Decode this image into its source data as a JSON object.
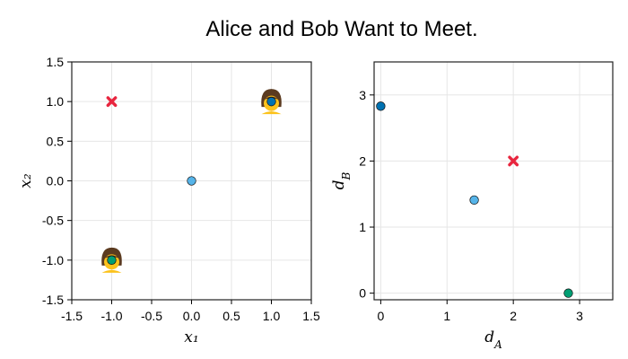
{
  "title": "Alice and Bob Want to Meet.",
  "colors": {
    "grid": "#e6e6e6",
    "frame": "#222222",
    "red_cross": "#e8263f",
    "blue_light": "#56b4e9",
    "blue_dark": "#0072b2",
    "green": "#009e73"
  },
  "chart_data": [
    {
      "type": "scatter",
      "title": "",
      "xlabel": "x₁",
      "ylabel": "x₂",
      "xlim": [
        -1.5,
        1.5
      ],
      "ylim": [
        -1.5,
        1.5
      ],
      "xticks": [
        -1.5,
        -1.0,
        -0.5,
        0.0,
        0.5,
        1.0,
        1.5
      ],
      "xtick_labels": [
        "-1.5",
        "-1.0",
        "-0.5",
        "0.0",
        "0.5",
        "1.0",
        "1.5"
      ],
      "yticks": [
        -1.5,
        -1.0,
        -0.5,
        0.0,
        0.5,
        1.0,
        1.5
      ],
      "ytick_labels": [
        "-1.5",
        "-1.0",
        "-0.5",
        "0.0",
        "0.5",
        "1.0",
        "1.5"
      ],
      "grid": true,
      "points": [
        {
          "x": -1.0,
          "y": 1.0,
          "marker": "x-cross",
          "color": "#e8263f"
        },
        {
          "x": 0.0,
          "y": 0.0,
          "marker": "circle",
          "color": "#56b4e9"
        },
        {
          "x": 1.0,
          "y": 1.0,
          "marker": "person-icon",
          "color": "#0072b2"
        },
        {
          "x": -1.0,
          "y": -1.0,
          "marker": "person-icon",
          "color": "#009e73"
        }
      ]
    },
    {
      "type": "scatter",
      "title": "",
      "xlabel": "d_A",
      "ylabel": "d_B",
      "xlim": [
        -0.1,
        3.5
      ],
      "ylim": [
        -0.1,
        3.5
      ],
      "xticks": [
        0,
        1,
        2,
        3
      ],
      "xtick_labels": [
        "0",
        "1",
        "2",
        "3"
      ],
      "yticks": [
        0,
        1,
        2,
        3
      ],
      "ytick_labels": [
        "0",
        "1",
        "2",
        "3"
      ],
      "grid": true,
      "points": [
        {
          "x": 0.0,
          "y": 2.83,
          "marker": "circle",
          "color": "#0072b2"
        },
        {
          "x": 1.41,
          "y": 1.41,
          "marker": "circle",
          "color": "#56b4e9"
        },
        {
          "x": 2.0,
          "y": 2.0,
          "marker": "x-cross",
          "color": "#e8263f"
        },
        {
          "x": 2.83,
          "y": 0.0,
          "marker": "circle",
          "color": "#009e73"
        }
      ]
    }
  ]
}
